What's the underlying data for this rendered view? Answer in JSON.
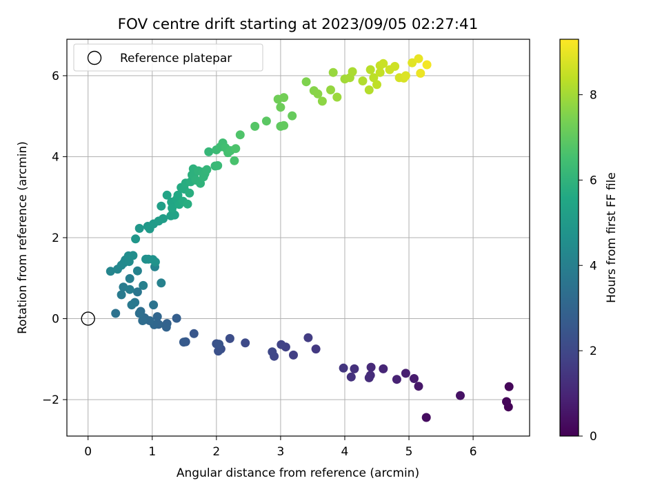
{
  "chart_data": {
    "type": "scatter",
    "title": "FOV centre drift starting at 2023/09/05 02:27:41",
    "xlabel": "Angular distance from reference (arcmin)",
    "ylabel": "Rotation from reference (arcmin)",
    "xlim": [
      -0.33,
      6.88
    ],
    "ylim": [
      -2.9,
      6.9
    ],
    "x_ticks": [
      0,
      1,
      2,
      3,
      4,
      5,
      6
    ],
    "y_ticks": [
      -2,
      0,
      2,
      4,
      6
    ],
    "y_tick_labels": [
      "−2",
      "0",
      "2",
      "4",
      "6"
    ],
    "grid": true,
    "legend": {
      "position": "top-left",
      "label": "Reference platepar"
    },
    "reference_point": {
      "x": 0,
      "y": 0
    },
    "colorbar": {
      "label": "Hours from first FF file",
      "colormap": "viridis",
      "range": [
        0,
        9.3
      ],
      "ticks": [
        0,
        2,
        4,
        6,
        8
      ]
    },
    "points": [
      [
        6.55,
        -2.18,
        0.05
      ],
      [
        6.52,
        -2.05,
        0.1
      ],
      [
        6.56,
        -1.68,
        0.15
      ],
      [
        5.27,
        -2.44,
        0.3
      ],
      [
        5.8,
        -1.9,
        0.45
      ],
      [
        5.15,
        -1.67,
        0.6
      ],
      [
        5.08,
        -1.48,
        0.7
      ],
      [
        4.95,
        -1.35,
        0.8
      ],
      [
        4.81,
        -1.5,
        0.9
      ],
      [
        4.6,
        -1.24,
        1.0
      ],
      [
        4.41,
        -1.2,
        1.1
      ],
      [
        4.4,
        -1.4,
        1.15
      ],
      [
        4.38,
        -1.46,
        1.2
      ],
      [
        4.15,
        -1.24,
        1.3
      ],
      [
        4.1,
        -1.44,
        1.35
      ],
      [
        3.98,
        -1.22,
        1.45
      ],
      [
        3.55,
        -0.75,
        1.55
      ],
      [
        3.43,
        -0.47,
        1.65
      ],
      [
        3.2,
        -0.9,
        1.75
      ],
      [
        3.08,
        -0.7,
        1.8
      ],
      [
        3.01,
        -0.64,
        1.85
      ],
      [
        2.9,
        -0.93,
        1.95
      ],
      [
        2.87,
        -0.82,
        2.0
      ],
      [
        2.45,
        -0.6,
        2.1
      ],
      [
        2.21,
        -0.49,
        2.2
      ],
      [
        2.07,
        -0.75,
        2.25
      ],
      [
        2.03,
        -0.8,
        2.3
      ],
      [
        2.0,
        -0.62,
        2.35
      ],
      [
        2.04,
        -0.63,
        2.4
      ],
      [
        1.65,
        -0.37,
        2.5
      ],
      [
        1.52,
        -0.57,
        2.6
      ],
      [
        1.49,
        -0.58,
        2.65
      ],
      [
        1.38,
        0.01,
        2.8
      ],
      [
        1.23,
        -0.12,
        2.9
      ],
      [
        1.22,
        -0.21,
        2.95
      ],
      [
        1.1,
        -0.14,
        3.0
      ],
      [
        1.08,
        0.05,
        3.05
      ],
      [
        1.03,
        -0.15,
        3.1
      ],
      [
        0.96,
        -0.05,
        3.15
      ],
      [
        0.9,
        -0.02,
        3.2
      ],
      [
        0.88,
        0.02,
        3.25
      ],
      [
        0.85,
        -0.05,
        3.3
      ],
      [
        0.82,
        0.18,
        3.35
      ],
      [
        0.8,
        0.13,
        3.4
      ],
      [
        0.43,
        0.13,
        3.5
      ],
      [
        1.02,
        0.34,
        3.55
      ],
      [
        0.77,
        0.66,
        3.65
      ],
      [
        0.73,
        0.4,
        3.7
      ],
      [
        0.68,
        0.34,
        3.75
      ],
      [
        0.52,
        0.59,
        3.8
      ],
      [
        0.55,
        0.78,
        3.85
      ],
      [
        0.65,
        0.72,
        3.9
      ],
      [
        0.65,
        0.99,
        3.95
      ],
      [
        0.86,
        0.82,
        4.0
      ],
      [
        1.14,
        0.88,
        4.05
      ],
      [
        0.77,
        1.18,
        4.1
      ],
      [
        1.04,
        1.28,
        4.15
      ],
      [
        0.35,
        1.17,
        4.2
      ],
      [
        0.46,
        1.22,
        4.25
      ],
      [
        0.52,
        1.32,
        4.3
      ],
      [
        0.56,
        1.38,
        4.35
      ],
      [
        0.58,
        1.45,
        4.4
      ],
      [
        0.64,
        1.41,
        4.45
      ],
      [
        0.63,
        1.55,
        4.5
      ],
      [
        0.7,
        1.56,
        4.55
      ],
      [
        0.9,
        1.47,
        4.6
      ],
      [
        0.94,
        1.47,
        4.65
      ],
      [
        1.01,
        1.46,
        4.7
      ],
      [
        1.05,
        1.4,
        4.75
      ],
      [
        0.74,
        1.97,
        4.85
      ],
      [
        0.8,
        2.23,
        4.9
      ],
      [
        0.93,
        2.28,
        4.95
      ],
      [
        0.96,
        2.22,
        5.0
      ],
      [
        1.02,
        2.34,
        5.05
      ],
      [
        1.1,
        2.41,
        5.1
      ],
      [
        1.17,
        2.47,
        5.15
      ],
      [
        1.14,
        2.78,
        5.2
      ],
      [
        1.29,
        2.54,
        5.25
      ],
      [
        1.32,
        2.6,
        5.3
      ],
      [
        1.35,
        2.56,
        5.35
      ],
      [
        1.23,
        3.05,
        5.4
      ],
      [
        1.3,
        2.88,
        5.45
      ],
      [
        1.31,
        2.73,
        5.5
      ],
      [
        1.38,
        2.95,
        5.55
      ],
      [
        1.4,
        3.05,
        5.6
      ],
      [
        1.42,
        2.82,
        5.62
      ],
      [
        1.45,
        3.24,
        5.65
      ],
      [
        1.48,
        2.9,
        5.7
      ],
      [
        1.5,
        3.2,
        5.72
      ],
      [
        1.52,
        3.35,
        5.75
      ],
      [
        1.55,
        2.83,
        5.78
      ],
      [
        1.58,
        3.1,
        5.8
      ],
      [
        1.6,
        3.38,
        5.83
      ],
      [
        1.62,
        3.55,
        5.86
      ],
      [
        1.64,
        3.7,
        5.9
      ],
      [
        1.65,
        3.53,
        5.92
      ],
      [
        1.68,
        3.42,
        5.95
      ],
      [
        1.72,
        3.65,
        5.98
      ],
      [
        1.75,
        3.34,
        6.0
      ],
      [
        1.78,
        3.62,
        6.03
      ],
      [
        1.8,
        3.5,
        6.05
      ],
      [
        1.82,
        3.58,
        6.08
      ],
      [
        1.85,
        3.68,
        6.1
      ],
      [
        1.88,
        4.12,
        6.15
      ],
      [
        1.98,
        3.77,
        6.2
      ],
      [
        2.02,
        3.78,
        6.25
      ],
      [
        2.0,
        4.17,
        6.3
      ],
      [
        2.06,
        4.24,
        6.35
      ],
      [
        2.1,
        4.34,
        6.4
      ],
      [
        2.14,
        4.22,
        6.45
      ],
      [
        2.18,
        4.1,
        6.5
      ],
      [
        2.22,
        4.15,
        6.55
      ],
      [
        2.28,
        3.9,
        6.6
      ],
      [
        2.3,
        4.2,
        6.65
      ],
      [
        2.37,
        4.54,
        6.7
      ],
      [
        2.6,
        4.75,
        6.8
      ],
      [
        2.78,
        4.88,
        6.9
      ],
      [
        3.0,
        4.75,
        7.0
      ],
      [
        3.05,
        4.77,
        7.05
      ],
      [
        3.18,
        5.01,
        7.1
      ],
      [
        3.0,
        5.22,
        7.2
      ],
      [
        2.96,
        5.42,
        7.25
      ],
      [
        3.05,
        5.46,
        7.3
      ],
      [
        3.4,
        5.85,
        7.5
      ],
      [
        3.52,
        5.63,
        7.6
      ],
      [
        3.58,
        5.55,
        7.65
      ],
      [
        3.65,
        5.37,
        7.7
      ],
      [
        3.78,
        5.65,
        7.8
      ],
      [
        3.82,
        6.08,
        7.85
      ],
      [
        3.88,
        5.47,
        7.9
      ],
      [
        4.0,
        5.92,
        8.0
      ],
      [
        4.08,
        5.95,
        8.05
      ],
      [
        4.12,
        6.1,
        8.1
      ],
      [
        4.28,
        5.87,
        8.2
      ],
      [
        4.38,
        5.65,
        8.25
      ],
      [
        4.4,
        6.15,
        8.3
      ],
      [
        4.45,
        5.95,
        8.35
      ],
      [
        4.5,
        5.78,
        8.4
      ],
      [
        4.55,
        6.08,
        8.45
      ],
      [
        4.55,
        6.25,
        8.5
      ],
      [
        4.6,
        6.3,
        8.55
      ],
      [
        4.7,
        6.15,
        8.6
      ],
      [
        4.78,
        6.23,
        8.62
      ],
      [
        4.85,
        5.95,
        8.7
      ],
      [
        4.92,
        5.94,
        8.75
      ],
      [
        4.95,
        6.0,
        8.8
      ],
      [
        5.05,
        6.32,
        8.9
      ],
      [
        5.15,
        6.42,
        9.0
      ],
      [
        5.18,
        6.06,
        9.05
      ],
      [
        5.28,
        6.27,
        9.15
      ]
    ]
  }
}
